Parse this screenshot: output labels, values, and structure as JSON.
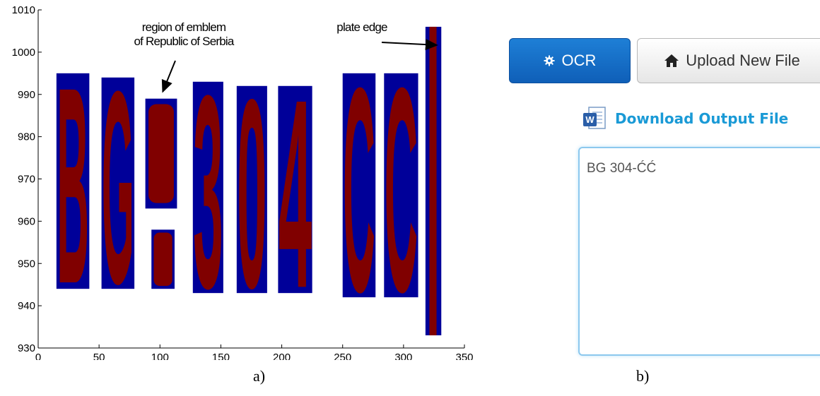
{
  "panel_a": {
    "caption": "a)",
    "annotations": [
      {
        "id": "emblem",
        "lines": [
          "region of emblem",
          "of Republic of Serbia"
        ],
        "target_x": 100,
        "target_y": 990
      },
      {
        "id": "edge",
        "lines": [
          "plate edge"
        ],
        "target_x": 325,
        "target_y": 1001
      }
    ],
    "colors": {
      "background": "#000099",
      "foreground": "#800000"
    }
  },
  "chart_data": {
    "type": "image",
    "xlim": [
      0,
      350
    ],
    "ylim": [
      930,
      1010
    ],
    "xticks": [
      0,
      50,
      100,
      150,
      200,
      250,
      300,
      350
    ],
    "yticks": [
      930,
      940,
      950,
      960,
      970,
      980,
      990,
      1000,
      1010
    ],
    "grid": false,
    "segments": [
      {
        "char": "B",
        "x": [
          15,
          42
        ],
        "y": [
          944,
          995
        ]
      },
      {
        "char": "G",
        "x": [
          52,
          79
        ],
        "y": [
          944,
          994
        ]
      },
      {
        "char": "emblem-top",
        "x": [
          88,
          114
        ],
        "y": [
          963,
          989
        ]
      },
      {
        "char": "emblem-bottom",
        "x": [
          93,
          112
        ],
        "y": [
          944,
          958
        ]
      },
      {
        "char": "3",
        "x": [
          127,
          152
        ],
        "y": [
          943,
          993
        ]
      },
      {
        "char": "0",
        "x": [
          163,
          188
        ],
        "y": [
          943,
          992
        ]
      },
      {
        "char": "4",
        "x": [
          197,
          225
        ],
        "y": [
          943,
          992
        ]
      },
      {
        "char": "C",
        "x": [
          250,
          277
        ],
        "y": [
          942,
          995
        ]
      },
      {
        "char": "C",
        "x": [
          284,
          312
        ],
        "y": [
          942,
          995
        ]
      },
      {
        "char": "edge",
        "x": [
          318,
          331
        ],
        "y": [
          933,
          1006
        ]
      }
    ]
  },
  "panel_b": {
    "caption": "b)",
    "ocr_button": {
      "label": "OCR",
      "icon": "gear-icon"
    },
    "upload_button": {
      "label": "Upload New File",
      "icon": "home-icon"
    },
    "download": {
      "label": "Download Output File",
      "icon": "word-document-icon"
    },
    "output_text": "BG 304-ĆĆ",
    "colors": {
      "primary": "#0f6fc6",
      "link": "#1a9ad6",
      "textarea_border": "#8cc8ee"
    }
  }
}
